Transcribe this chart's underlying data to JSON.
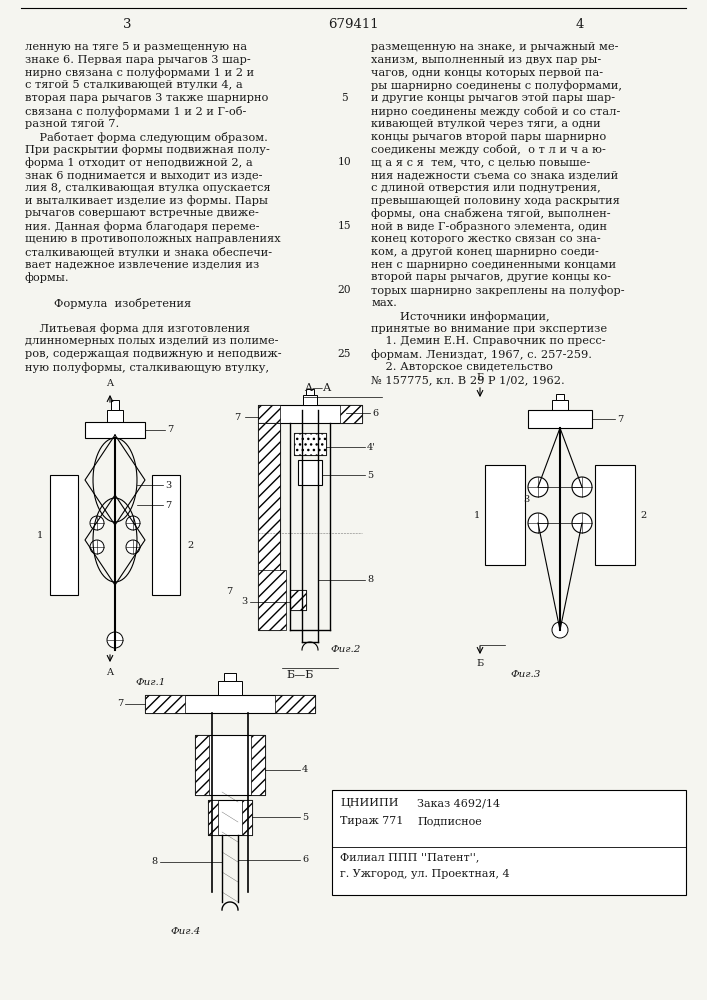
{
  "page_number_left": "3",
  "patent_number": "679411",
  "page_number_right": "4",
  "left_column_text": [
    "ленную на тяге 5 и размещенную на",
    "знаке 6. Первая пара рычагов 3 шар-",
    "нирно связана с полуформами 1 и 2 и",
    "с тягой 5 сталкивающей втулки 4, а",
    "вторая пара рычагов 3 также шарнирно",
    "связана с полуформами 1 и 2 и Г-об-",
    "разной тягой 7.",
    "    Работает форма следующим образом.",
    "При раскрытии формы подвижная полу-",
    "форма 1 отходит от неподвижной 2, а",
    "знак 6 поднимается и выходит из изде-",
    "лия 8, сталкивающая втулка опускается",
    "и выталкивает изделие из формы. Пары",
    "рычагов совершают встречные движе-",
    "ния. Данная форма благодаря переме-",
    "щению в противоположных направлениях",
    "сталкивающей втулки и знака обеспечи-",
    "вает надежное извлечение изделия из",
    "формы.",
    "",
    "        Формула  изобретения",
    "",
    "    Литьевая форма для изготовления",
    "длинномерных полых изделий из полиме-",
    "ров, содержащая подвижную и неподвиж-",
    "ную полуформы, сталкивающую втулку,"
  ],
  "right_column_text": [
    "размещенную на знаке, и рычажный ме-",
    "ханизм, выполненный из двух пар ры-",
    "чагов, одни концы которых первой па-",
    "ры шарнирно соединены с полуформами,",
    "и другие концы рычагов этой пары шар-",
    "нирно соединены между собой и со стал-",
    "кивающей втулкой через тяги, а одни",
    "концы рычагов второй пары шарнирно",
    "соедикены между собой,  о т л и ч а ю-",
    "щ а я с я  тем, что, с целью повыше-",
    "ния надежности съема со знака изделий",
    "с длиной отверстия или поднутрения,",
    "превышающей половину хода раскрытия",
    "формы, она снабжена тягой, выполнен-",
    "ной в виде Г-образного элемента, один",
    "конец которого жестко связан со зна-",
    "ком, а другой конец шарнирно соеди-",
    "нен с шарнирно соединенными концами",
    "второй пары рычагов, другие концы ко-",
    "торых шарнирно закреплены на полуфор-",
    "мах.",
    "        Источники информации,",
    "принятые во внимание при экспертизе",
    "    1. Демин Е.Н. Справочник по пресс-",
    "формам. Лениздат, 1967, с. 257-259.",
    "    2. Авторское свидетельство",
    "№ 157775, кл. В 29 Р 1/02, 1962."
  ],
  "line_nums": {
    "4": "5",
    "9": "10",
    "14": "15",
    "19": "20",
    "24": "25"
  },
  "background_color": "#f5f5f0",
  "text_color": "#1a1a1a",
  "font_size_body": 8.2,
  "font_size_header": 9.0
}
